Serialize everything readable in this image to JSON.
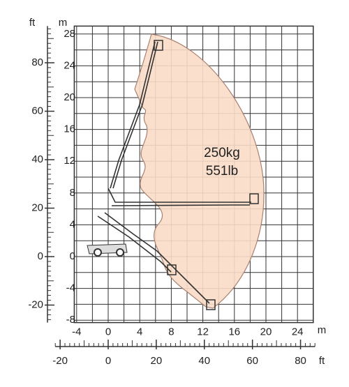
{
  "meter_axis": {
    "unit": "m",
    "x_ticks": [
      -4,
      0,
      4,
      8,
      12,
      16,
      20,
      24
    ],
    "y_ticks": [
      28,
      24,
      20,
      16,
      12,
      8,
      4,
      0,
      -4,
      -8
    ]
  },
  "feet_axis": {
    "unit": "ft",
    "x_ticks": [
      -20,
      0,
      20,
      40,
      60,
      80
    ],
    "y_ticks": [
      80,
      60,
      40,
      20,
      0,
      -20
    ]
  },
  "load": {
    "kg": "250kg",
    "lb": "551lb"
  }
}
